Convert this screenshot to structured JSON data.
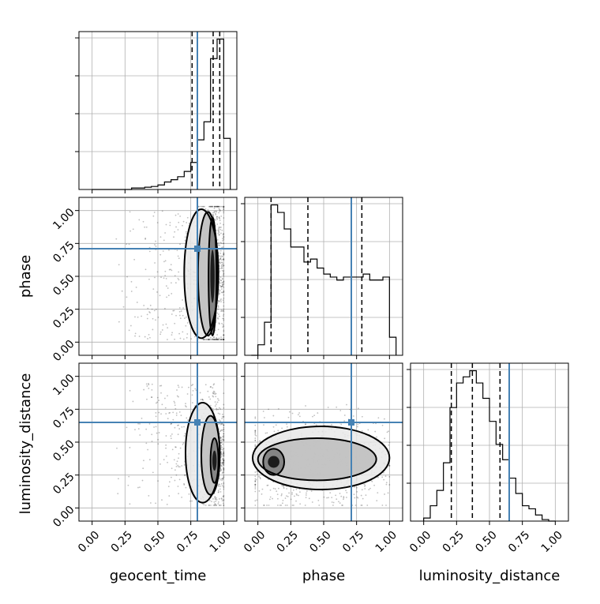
{
  "chart_data": {
    "type": "corner",
    "parameters": [
      "geocent_time",
      "phase",
      "luminosity_distance"
    ],
    "axis_labels": {
      "geocent_time": "geocent_time",
      "phase": "phase",
      "luminosity_distance": "luminosity_distance"
    },
    "tick_values": [
      0.0,
      0.25,
      0.5,
      0.75,
      1.0
    ],
    "tick_labels": [
      "0.00",
      "0.25",
      "0.50",
      "0.75",
      "1.00"
    ],
    "axis_range": [
      -0.1,
      1.1
    ],
    "grid": true,
    "truths": {
      "geocent_time": 0.8,
      "phase": 0.71,
      "luminosity_distance": 0.65
    },
    "truth_color": "#4682b4",
    "histograms": [
      {
        "parameter": "geocent_time",
        "bin_edges": [
          0.0,
          0.05,
          0.1,
          0.15,
          0.2,
          0.25,
          0.3,
          0.35,
          0.4,
          0.45,
          0.5,
          0.55,
          0.6,
          0.65,
          0.7,
          0.75,
          0.8,
          0.85,
          0.9,
          0.95,
          1.0,
          1.05
        ],
        "counts": [
          0,
          0,
          0,
          0,
          0,
          0,
          0.01,
          0.01,
          0.015,
          0.02,
          0.03,
          0.05,
          0.065,
          0.085,
          0.12,
          0.18,
          0.33,
          0.45,
          0.87,
          1.0,
          0.34
        ],
        "quantiles": [
          0.76,
          0.92,
          0.97
        ]
      },
      {
        "parameter": "phase",
        "bin_edges": [
          -0.05,
          0.0,
          0.05,
          0.1,
          0.15,
          0.2,
          0.25,
          0.3,
          0.35,
          0.4,
          0.45,
          0.5,
          0.55,
          0.6,
          0.65,
          0.7,
          0.75,
          0.8,
          0.85,
          0.9,
          0.95,
          1.0,
          1.05
        ],
        "counts": [
          0,
          0.07,
          0.22,
          1.0,
          0.95,
          0.84,
          0.72,
          0.72,
          0.62,
          0.64,
          0.58,
          0.54,
          0.52,
          0.5,
          0.52,
          0.52,
          0.52,
          0.54,
          0.5,
          0.5,
          0.52,
          0.12,
          0
        ],
        "quantiles": [
          0.1,
          0.38,
          0.79
        ]
      },
      {
        "parameter": "luminosity_distance",
        "bin_edges": [
          0.0,
          0.05,
          0.1,
          0.15,
          0.2,
          0.25,
          0.3,
          0.35,
          0.4,
          0.45,
          0.5,
          0.55,
          0.6,
          0.65,
          0.7,
          0.75,
          0.8,
          0.85,
          0.9,
          0.95,
          1.0
        ],
        "counts": [
          0.02,
          0.1,
          0.2,
          0.38,
          0.74,
          0.9,
          0.94,
          0.98,
          0.9,
          0.8,
          0.65,
          0.5,
          0.4,
          0.28,
          0.18,
          0.1,
          0.08,
          0.04,
          0.01,
          0.0
        ],
        "quantiles": [
          0.21,
          0.37,
          0.58
        ]
      }
    ],
    "density_panels": [
      {
        "x": "geocent_time",
        "y": "phase",
        "center": [
          0.94,
          0.5
        ],
        "spread": [
          0.05,
          0.35
        ],
        "tail_x_min": 0.15,
        "y_range": [
          0.02,
          1.0
        ],
        "contours": [
          {
            "cx": 0.915,
            "cy": 0.5,
            "rx": 0.03,
            "ry": 0.45
          },
          {
            "cx": 0.88,
            "cy": 0.52,
            "rx": 0.075,
            "ry": 0.47
          },
          {
            "cx": 0.83,
            "cy": 0.52,
            "rx": 0.13,
            "ry": 0.49
          }
        ]
      },
      {
        "x": "geocent_time",
        "y": "luminosity_distance",
        "center": [
          0.94,
          0.38
        ],
        "spread": [
          0.05,
          0.18
        ],
        "tail_x_min": 0.15,
        "y_range": [
          0.02,
          0.95
        ],
        "contours": [
          {
            "cx": 0.93,
            "cy": 0.36,
            "rx": 0.03,
            "ry": 0.17
          },
          {
            "cx": 0.9,
            "cy": 0.4,
            "rx": 0.07,
            "ry": 0.3
          },
          {
            "cx": 0.84,
            "cy": 0.42,
            "rx": 0.13,
            "ry": 0.38
          }
        ]
      },
      {
        "x": "phase",
        "y": "luminosity_distance",
        "center": [
          0.35,
          0.35
        ],
        "spread": [
          0.3,
          0.15
        ],
        "tail_x_min": 0.0,
        "y_range": [
          0.02,
          0.95
        ],
        "contours": [
          {
            "cx": 0.12,
            "cy": 0.35,
            "rx": 0.08,
            "ry": 0.1
          },
          {
            "cx": 0.45,
            "cy": 0.37,
            "rx": 0.45,
            "ry": 0.16
          },
          {
            "cx": 0.48,
            "cy": 0.38,
            "rx": 0.52,
            "ry": 0.24
          }
        ]
      }
    ]
  }
}
